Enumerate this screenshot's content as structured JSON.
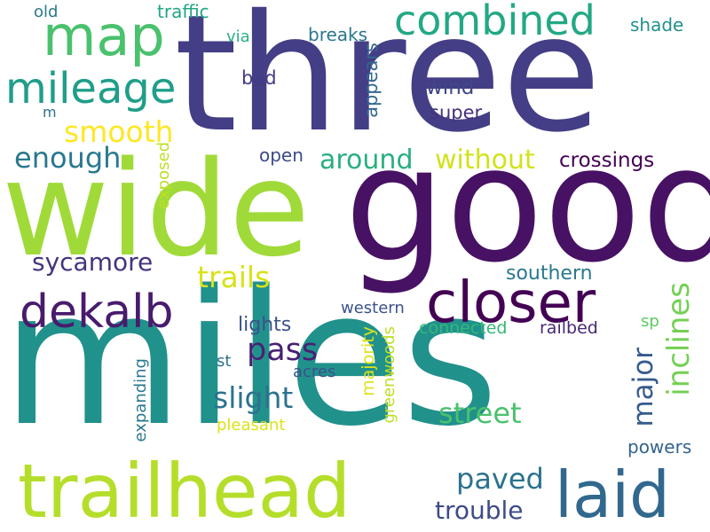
{
  "palette": {
    "purple_dark": "#440154",
    "indigo": "#482878",
    "blue_violet": "#3e4989",
    "steel_blue": "#31688e",
    "teal_blue": "#26828e",
    "teal": "#1f9e89",
    "green_teal": "#35b779",
    "green": "#6ece58",
    "lime": "#b5de2b",
    "yellow": "#dde318"
  },
  "words": [
    {
      "text": "three",
      "color": "#433e85"
    },
    {
      "text": "wide",
      "color": "#a0da39"
    },
    {
      "text": "good",
      "color": "#471164"
    },
    {
      "text": "miles",
      "color": "#21918c"
    },
    {
      "text": "trailhead",
      "color": "#b5de2b"
    },
    {
      "text": "closer",
      "color": "#440154"
    },
    {
      "text": "laid",
      "color": "#31688e"
    },
    {
      "text": "dekalb",
      "color": "#481b6d"
    },
    {
      "text": "map",
      "color": "#4ac16d"
    },
    {
      "text": "mileage",
      "color": "#1f9e89"
    },
    {
      "text": "combined",
      "color": "#22a884"
    },
    {
      "text": "smooth",
      "color": "#fde725"
    },
    {
      "text": "enough",
      "color": "#2a788e"
    },
    {
      "text": "around",
      "color": "#29af7f"
    },
    {
      "text": "without",
      "color": "#d2e21b"
    },
    {
      "text": "crossings",
      "color": "#440154"
    },
    {
      "text": "sycamore",
      "color": "#46337e"
    },
    {
      "text": "trails",
      "color": "#d8e219"
    },
    {
      "text": "street",
      "color": "#4ac16d"
    },
    {
      "text": "slight",
      "color": "#2c728e"
    },
    {
      "text": "pass",
      "color": "#482173"
    },
    {
      "text": "inclines",
      "color": "#75d054"
    },
    {
      "text": "major",
      "color": "#365c8d"
    },
    {
      "text": "paved",
      "color": "#2c728e"
    },
    {
      "text": "trouble",
      "color": "#3e4a89"
    },
    {
      "text": "southern",
      "color": "#2a788e"
    },
    {
      "text": "lights",
      "color": "#3b528b"
    },
    {
      "text": "western",
      "color": "#3b528b"
    },
    {
      "text": "connected",
      "color": "#35b779"
    },
    {
      "text": "railbed",
      "color": "#482878"
    },
    {
      "text": "open",
      "color": "#3e4989"
    },
    {
      "text": "super",
      "color": "#46327e"
    },
    {
      "text": "wind",
      "color": "#3f4788"
    },
    {
      "text": "appears",
      "color": "#31688e"
    },
    {
      "text": "bad",
      "color": "#443a83"
    },
    {
      "text": "breaks",
      "color": "#2a778e"
    },
    {
      "text": "via",
      "color": "#2ab07f"
    },
    {
      "text": "traffic",
      "color": "#21a685"
    },
    {
      "text": "old",
      "color": "#2a788e"
    },
    {
      "text": "shade",
      "color": "#21918c"
    },
    {
      "text": "m",
      "color": "#2c728e"
    },
    {
      "text": "exposed",
      "color": "#bddf26"
    },
    {
      "text": "expanding",
      "color": "#2a788e"
    },
    {
      "text": "st",
      "color": "#2c728e"
    },
    {
      "text": "acres",
      "color": "#3b528b"
    },
    {
      "text": "pleasant",
      "color": "#dde318"
    },
    {
      "text": "majority",
      "color": "#dde318"
    },
    {
      "text": "greenwoods",
      "color": "#bddf26"
    },
    {
      "text": "sp",
      "color": "#5ec962"
    },
    {
      "text": "powers",
      "color": "#33638d"
    }
  ]
}
